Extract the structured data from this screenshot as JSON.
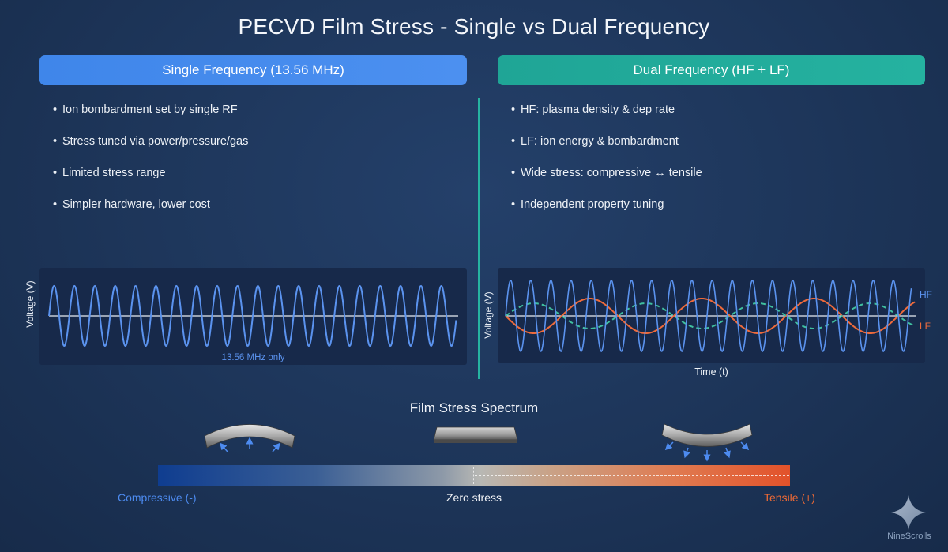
{
  "title": "PECVD Film Stress - Single vs Dual Frequency",
  "single": {
    "header": "Single Frequency (13.56 MHz)",
    "bullets": [
      "Ion bombardment set by single RF",
      "Stress tuned via power/pressure/gas",
      "Limited stress range",
      "Simpler hardware, lower cost"
    ],
    "ylabel": "Voltage (V)",
    "note": "13.56 MHz only"
  },
  "dual": {
    "header": "Dual Frequency (HF + LF)",
    "bullets": [
      "HF: plasma density & dep rate",
      "LF: ion energy & bombardment",
      "Wide stress: compressive ↔ tensile",
      "Independent property tuning"
    ],
    "ylabel": "Voltage (V)",
    "xlabel": "Time (t)",
    "legend": {
      "hf": "HF",
      "lf": "LF"
    }
  },
  "spectrum": {
    "title": "Film Stress Spectrum",
    "left_label": "Compressive (-)",
    "center_label": "Zero stress",
    "right_label": "Tensile (+)"
  },
  "colors": {
    "hf_wave": "#5b93ef",
    "lf_wave": "#ee6a3b",
    "combined_wave": "#3fbf9f",
    "single_header": "#4389ec",
    "dual_header": "#22ab9b",
    "divider": "#26b3a1"
  },
  "brand": {
    "name": "NineScrolls",
    "icon": "sparkle-icon"
  }
}
